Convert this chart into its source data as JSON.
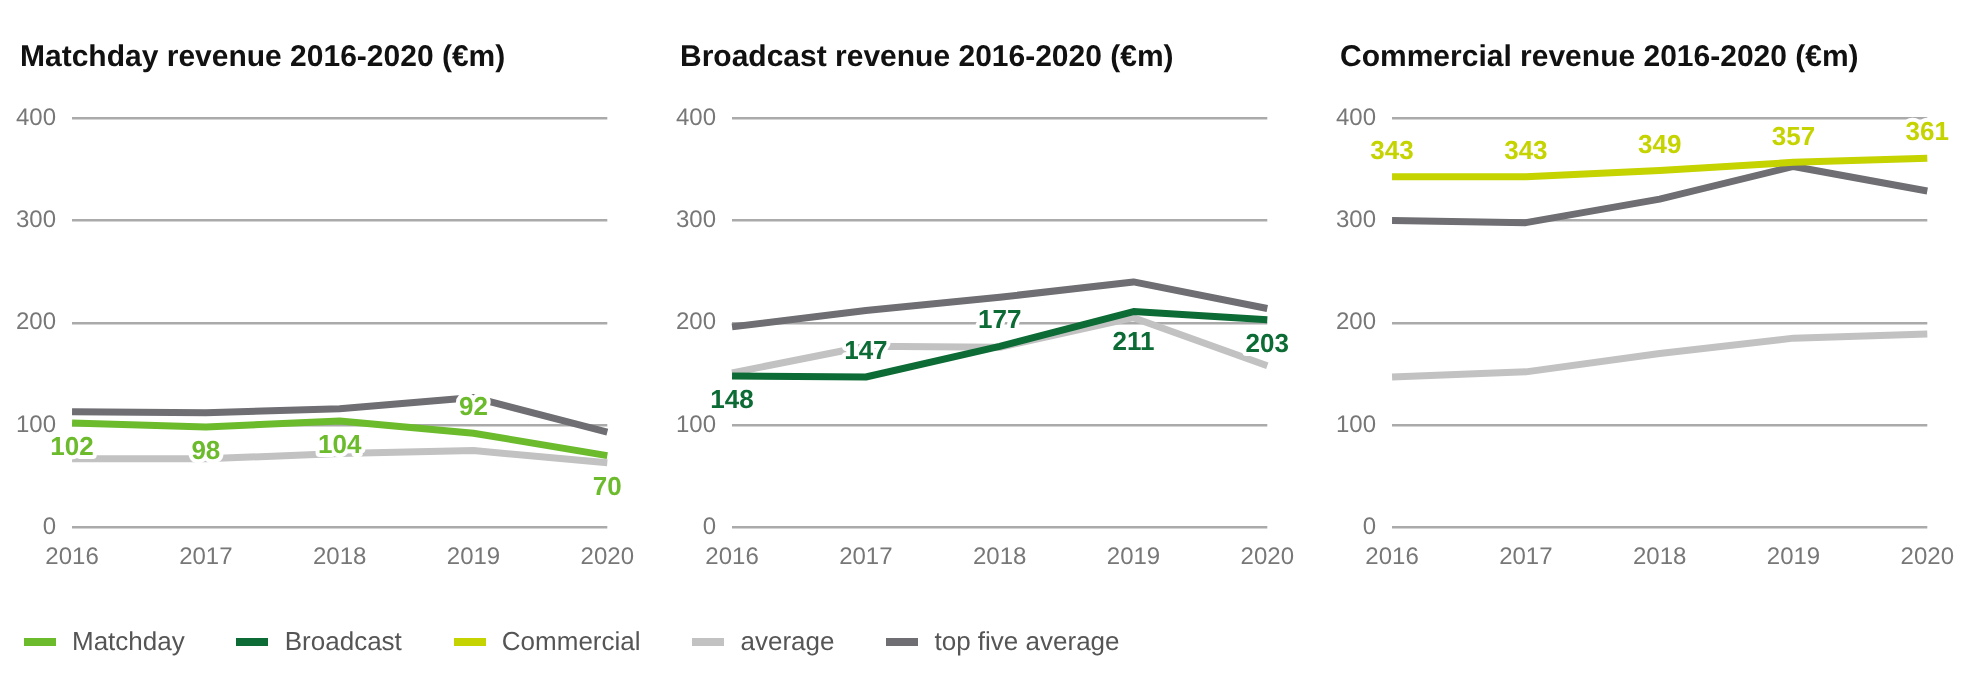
{
  "chart_data": [
    {
      "type": "line",
      "title": "Matchday revenue 2016-2020 (€m)",
      "categories": [
        "2016",
        "2017",
        "2018",
        "2019",
        "2020"
      ],
      "ylim": [
        0,
        400
      ],
      "yticks": [
        0,
        100,
        200,
        300,
        400
      ],
      "grid": "y",
      "legend": "bottom",
      "marker": "none",
      "series": [
        {
          "name": "Matchday",
          "color": "#6cbb2d",
          "values": [
            102,
            98,
            104,
            92,
            70
          ],
          "value_labels": [
            "102",
            "98",
            "104",
            "92",
            "70"
          ]
        },
        {
          "color": "#c2c2c2",
          "values": [
            67,
            67,
            72,
            75,
            63
          ]
        },
        {
          "color": "#6e6e73",
          "values": [
            113,
            112,
            116,
            127,
            93
          ]
        }
      ]
    },
    {
      "type": "line",
      "title": "Broadcast revenue 2016-2020 (€m)",
      "categories": [
        "2016",
        "2017",
        "2018",
        "2019",
        "2020"
      ],
      "ylim": [
        0,
        400
      ],
      "yticks": [
        0,
        100,
        200,
        300,
        400
      ],
      "grid": "y",
      "legend": "bottom",
      "marker": "none",
      "series": [
        {
          "name": "Broadcast",
          "color": "#0d6b35",
          "values": [
            148,
            147,
            177,
            211,
            203
          ],
          "value_labels": [
            "148",
            "147",
            "177",
            "211",
            "203"
          ]
        },
        {
          "color": "#c2c2c2",
          "values": [
            151,
            177,
            176,
            205,
            158
          ]
        },
        {
          "color": "#6e6e73",
          "values": [
            196,
            212,
            225,
            240,
            214
          ]
        }
      ]
    },
    {
      "type": "line",
      "title": "Commercial revenue 2016-2020 (€m)",
      "categories": [
        "2016",
        "2017",
        "2018",
        "2019",
        "2020"
      ],
      "ylim": [
        0,
        400
      ],
      "yticks": [
        0,
        100,
        200,
        300,
        400
      ],
      "grid": "y",
      "legend": "bottom",
      "marker": "none",
      "series": [
        {
          "name": "Commercial",
          "color": "#c5d300",
          "values": [
            343,
            343,
            349,
            357,
            361
          ],
          "value_labels": [
            "343",
            "343",
            "349",
            "357",
            "361"
          ]
        },
        {
          "name": "average",
          "color": "#c2c2c2",
          "values": [
            147,
            152,
            170,
            185,
            189
          ]
        },
        {
          "name": "top five average",
          "color": "#6e6e73",
          "values": [
            300,
            298,
            321,
            353,
            329
          ]
        }
      ]
    }
  ]
}
